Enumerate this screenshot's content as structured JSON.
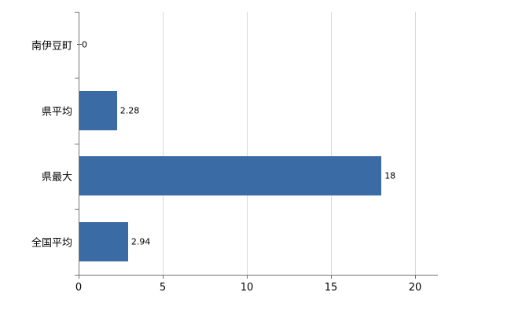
{
  "chart_data": {
    "type": "bar",
    "orientation": "horizontal",
    "title": "",
    "categories": [
      "南伊豆町",
      "県平均",
      "県最大",
      "全国平均"
    ],
    "values": [
      0,
      2.28,
      18,
      2.94
    ],
    "value_labels": [
      "0",
      "2.28",
      "18",
      "2.94"
    ],
    "xlim": [
      0,
      20
    ],
    "xticks": [
      0,
      5,
      10,
      15,
      20
    ],
    "xtick_labels": [
      "0",
      "5",
      "10",
      "15",
      "20"
    ],
    "bar_color": "#3a6ba5",
    "gridline_color": "#d9d9d9",
    "axis_color": "#737373",
    "grid": "vertical",
    "legend_position": "none"
  }
}
